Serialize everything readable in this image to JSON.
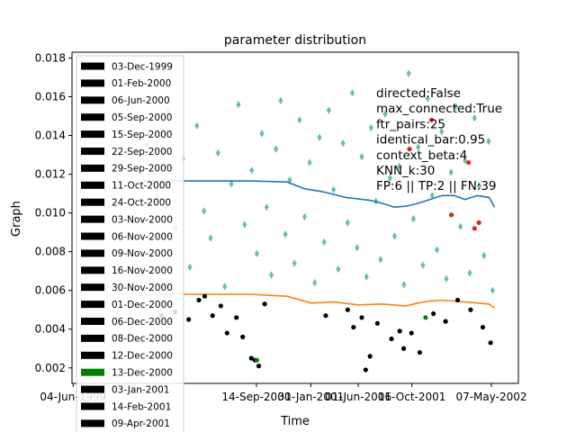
{
  "chart_data": {
    "type": "scatter",
    "title": "parameter distribution",
    "xlabel": "Time",
    "ylabel": "Graph",
    "xlim": [
      "1999-06-01",
      "2002-07-15"
    ],
    "ylim": [
      0.0012,
      0.0183
    ],
    "x_ticks": [
      {
        "date": "1999-06-04",
        "label": "04-Jun-1999"
      },
      {
        "date": "2000-09-14",
        "label": "14-Sep-2000"
      },
      {
        "date": "2001-01-31",
        "label": "31-Jan-2001"
      },
      {
        "date": "2001-06-01",
        "label": "01-Jun-2001"
      },
      {
        "date": "2001-10-16",
        "label": "16-Oct-2001"
      },
      {
        "date": "2002-05-07",
        "label": "07-May-2002"
      }
    ],
    "y_ticks": [
      {
        "value": 0.002,
        "label": "0.002"
      },
      {
        "value": 0.004,
        "label": "0.004"
      },
      {
        "value": 0.006,
        "label": "0.006"
      },
      {
        "value": 0.008,
        "label": "0.008"
      },
      {
        "value": 0.01,
        "label": "0.010"
      },
      {
        "value": 0.012,
        "label": "0.012"
      },
      {
        "value": 0.014,
        "label": "0.014"
      },
      {
        "value": 0.016,
        "label": "0.016"
      },
      {
        "value": 0.018,
        "label": "0.018"
      }
    ],
    "grid": false,
    "legend_placement": "upper-left",
    "legend": [
      {
        "label": "03-Dec-1999",
        "color": "#000000"
      },
      {
        "label": "01-Feb-2000",
        "color": "#000000"
      },
      {
        "label": "06-Jun-2000",
        "color": "#000000"
      },
      {
        "label": "05-Sep-2000",
        "color": "#000000"
      },
      {
        "label": "15-Sep-2000",
        "color": "#000000"
      },
      {
        "label": "22-Sep-2000",
        "color": "#000000"
      },
      {
        "label": "29-Sep-2000",
        "color": "#000000"
      },
      {
        "label": "11-Oct-2000",
        "color": "#000000"
      },
      {
        "label": "24-Oct-2000",
        "color": "#000000"
      },
      {
        "label": "03-Nov-2000",
        "color": "#000000"
      },
      {
        "label": "06-Nov-2000",
        "color": "#000000"
      },
      {
        "label": "09-Nov-2000",
        "color": "#000000"
      },
      {
        "label": "16-Nov-2000",
        "color": "#000000"
      },
      {
        "label": "30-Nov-2000",
        "color": "#000000"
      },
      {
        "label": "01-Dec-2000",
        "color": "#000000"
      },
      {
        "label": "06-Dec-2000",
        "color": "#000000"
      },
      {
        "label": "08-Dec-2000",
        "color": "#000000"
      },
      {
        "label": "12-Dec-2000",
        "color": "#000000"
      },
      {
        "label": "13-Dec-2000",
        "color": "#008000"
      },
      {
        "label": "03-Jan-2001",
        "color": "#000000"
      },
      {
        "label": "14-Feb-2001",
        "color": "#000000"
      },
      {
        "label": "09-Apr-2001",
        "color": "#000000"
      }
    ],
    "annotation_lines": [
      "directed:False",
      "max_connected:True",
      "ftr_pairs:25",
      "identical_bar:0.95",
      "context_beta:4",
      "KNN_k:30",
      "FP:6  ||  TP:2  ||  FN:39"
    ],
    "colors": {
      "diamonds": "#66c2a5",
      "upper_line": "#1f77b4",
      "lower_line": "#ff7f0e",
      "black_points": "#000000",
      "red_points": "#d62728",
      "green_points": "#008000"
    },
    "upper_line": {
      "x": [
        "1999-12-01",
        "2000-03-01",
        "2000-06-01",
        "2000-09-01",
        "2000-12-01",
        "2001-01-15",
        "2001-03-01",
        "2001-05-01",
        "2001-07-01",
        "2001-08-01",
        "2001-09-01",
        "2001-10-01",
        "2001-11-01",
        "2001-12-01",
        "2002-01-01",
        "2002-02-01",
        "2002-03-01",
        "2002-04-01",
        "2002-05-01",
        "2002-05-15"
      ],
      "y": [
        0.01165,
        0.01165,
        0.01165,
        0.01165,
        0.0116,
        0.01125,
        0.0111,
        0.0108,
        0.01065,
        0.0105,
        0.0103,
        0.01035,
        0.0105,
        0.0107,
        0.0109,
        0.0109,
        0.0107,
        0.0109,
        0.0108,
        0.0103
      ]
    },
    "lower_line": {
      "x": [
        "1999-12-01",
        "2000-06-01",
        "2000-09-01",
        "2000-12-01",
        "2001-02-01",
        "2001-04-01",
        "2001-06-01",
        "2001-08-01",
        "2001-10-01",
        "2001-11-01",
        "2001-12-01",
        "2002-01-01",
        "2002-03-01",
        "2002-05-01",
        "2002-05-15"
      ],
      "y": [
        0.0058,
        0.0058,
        0.0058,
        0.0057,
        0.00535,
        0.0054,
        0.00525,
        0.0053,
        0.0052,
        0.00535,
        0.00545,
        0.0055,
        0.0054,
        0.0053,
        0.0051
      ]
    },
    "diamonds": {
      "x": [
        "1999-12-10",
        "2000-01-05",
        "2000-02-01",
        "2000-02-20",
        "2000-03-10",
        "2000-03-28",
        "2000-04-15",
        "2000-05-03",
        "2000-05-20",
        "2000-06-08",
        "2000-06-25",
        "2000-07-12",
        "2000-07-30",
        "2000-08-15",
        "2000-09-02",
        "2000-09-15",
        "2000-09-28",
        "2000-10-10",
        "2000-10-22",
        "2000-11-03",
        "2000-11-15",
        "2000-11-27",
        "2000-12-08",
        "2000-12-20",
        "2001-01-02",
        "2001-01-15",
        "2001-01-28",
        "2001-02-10",
        "2001-02-22",
        "2001-03-06",
        "2001-03-18",
        "2001-03-30",
        "2001-04-11",
        "2001-04-23",
        "2001-05-05",
        "2001-05-17",
        "2001-05-29",
        "2001-06-10",
        "2001-06-22",
        "2001-07-04",
        "2001-07-16",
        "2001-07-28",
        "2001-08-09",
        "2001-08-21",
        "2001-09-02",
        "2001-09-14",
        "2001-09-26",
        "2001-10-08",
        "2001-10-20",
        "2001-11-01",
        "2001-11-13",
        "2001-11-25",
        "2001-12-07",
        "2001-12-19",
        "2001-12-31",
        "2002-01-12",
        "2002-01-24",
        "2002-02-05",
        "2002-02-17",
        "2002-03-01",
        "2002-03-13",
        "2002-03-25",
        "2002-04-06",
        "2002-04-18",
        "2002-04-30",
        "2002-05-10"
      ],
      "y": [
        0.0135,
        0.0108,
        0.0152,
        0.0092,
        0.0128,
        0.0072,
        0.0145,
        0.0101,
        0.0087,
        0.0131,
        0.0062,
        0.0115,
        0.0156,
        0.0094,
        0.0122,
        0.0079,
        0.0141,
        0.0103,
        0.0068,
        0.0133,
        0.0158,
        0.0089,
        0.0117,
        0.0074,
        0.0148,
        0.0098,
        0.0126,
        0.0064,
        0.0139,
        0.0085,
        0.0153,
        0.0112,
        0.0071,
        0.0136,
        0.0095,
        0.0162,
        0.0082,
        0.0129,
        0.0067,
        0.0144,
        0.0106,
        0.0076,
        0.0151,
        0.0118,
        0.0088,
        0.0124,
        0.0063,
        0.0172,
        0.0097,
        0.0134,
        0.0073,
        0.0159,
        0.0109,
        0.0081,
        0.0142,
        0.0066,
        0.0121,
        0.0155,
        0.0093,
        0.0127,
        0.0069,
        0.0149,
        0.0114,
        0.0078,
        0.0137,
        0.006
      ]
    },
    "black_points": {
      "x": [
        "2000-01-15",
        "2000-02-20",
        "2000-03-25",
        "2000-04-20",
        "2000-05-05",
        "2000-05-25",
        "2000-06-15",
        "2000-07-01",
        "2000-07-25",
        "2000-08-10",
        "2000-09-01",
        "2000-09-10",
        "2000-09-20",
        "2000-10-05",
        "2001-03-10",
        "2001-05-05",
        "2001-05-20",
        "2001-06-10",
        "2001-06-20",
        "2001-07-01",
        "2001-07-20",
        "2001-08-25",
        "2001-09-15",
        "2001-09-25",
        "2001-10-15",
        "2001-11-05",
        "2001-12-10",
        "2002-01-10",
        "2002-02-10",
        "2002-03-15",
        "2002-04-15",
        "2002-05-05"
      ],
      "y": [
        0.0047,
        0.0049,
        0.0045,
        0.0055,
        0.0057,
        0.0047,
        0.0052,
        0.0038,
        0.0046,
        0.0036,
        0.0025,
        0.0024,
        0.0021,
        0.0053,
        0.0047,
        0.005,
        0.0041,
        0.0046,
        0.0019,
        0.0026,
        0.0043,
        0.0035,
        0.0039,
        0.003,
        0.0038,
        0.0028,
        0.0048,
        0.0044,
        0.0055,
        0.005,
        0.0041,
        0.0033
      ]
    },
    "red_points": {
      "x": [
        "2001-10-10",
        "2001-12-05",
        "2002-01-25",
        "2002-03-10",
        "2002-03-25",
        "2002-04-05"
      ],
      "y": [
        0.0133,
        0.0148,
        0.0099,
        0.0126,
        0.0092,
        0.0095
      ]
    },
    "green_points": {
      "x": [
        "2000-09-15",
        "2001-11-20"
      ],
      "y": [
        0.0024,
        0.0046
      ]
    }
  }
}
